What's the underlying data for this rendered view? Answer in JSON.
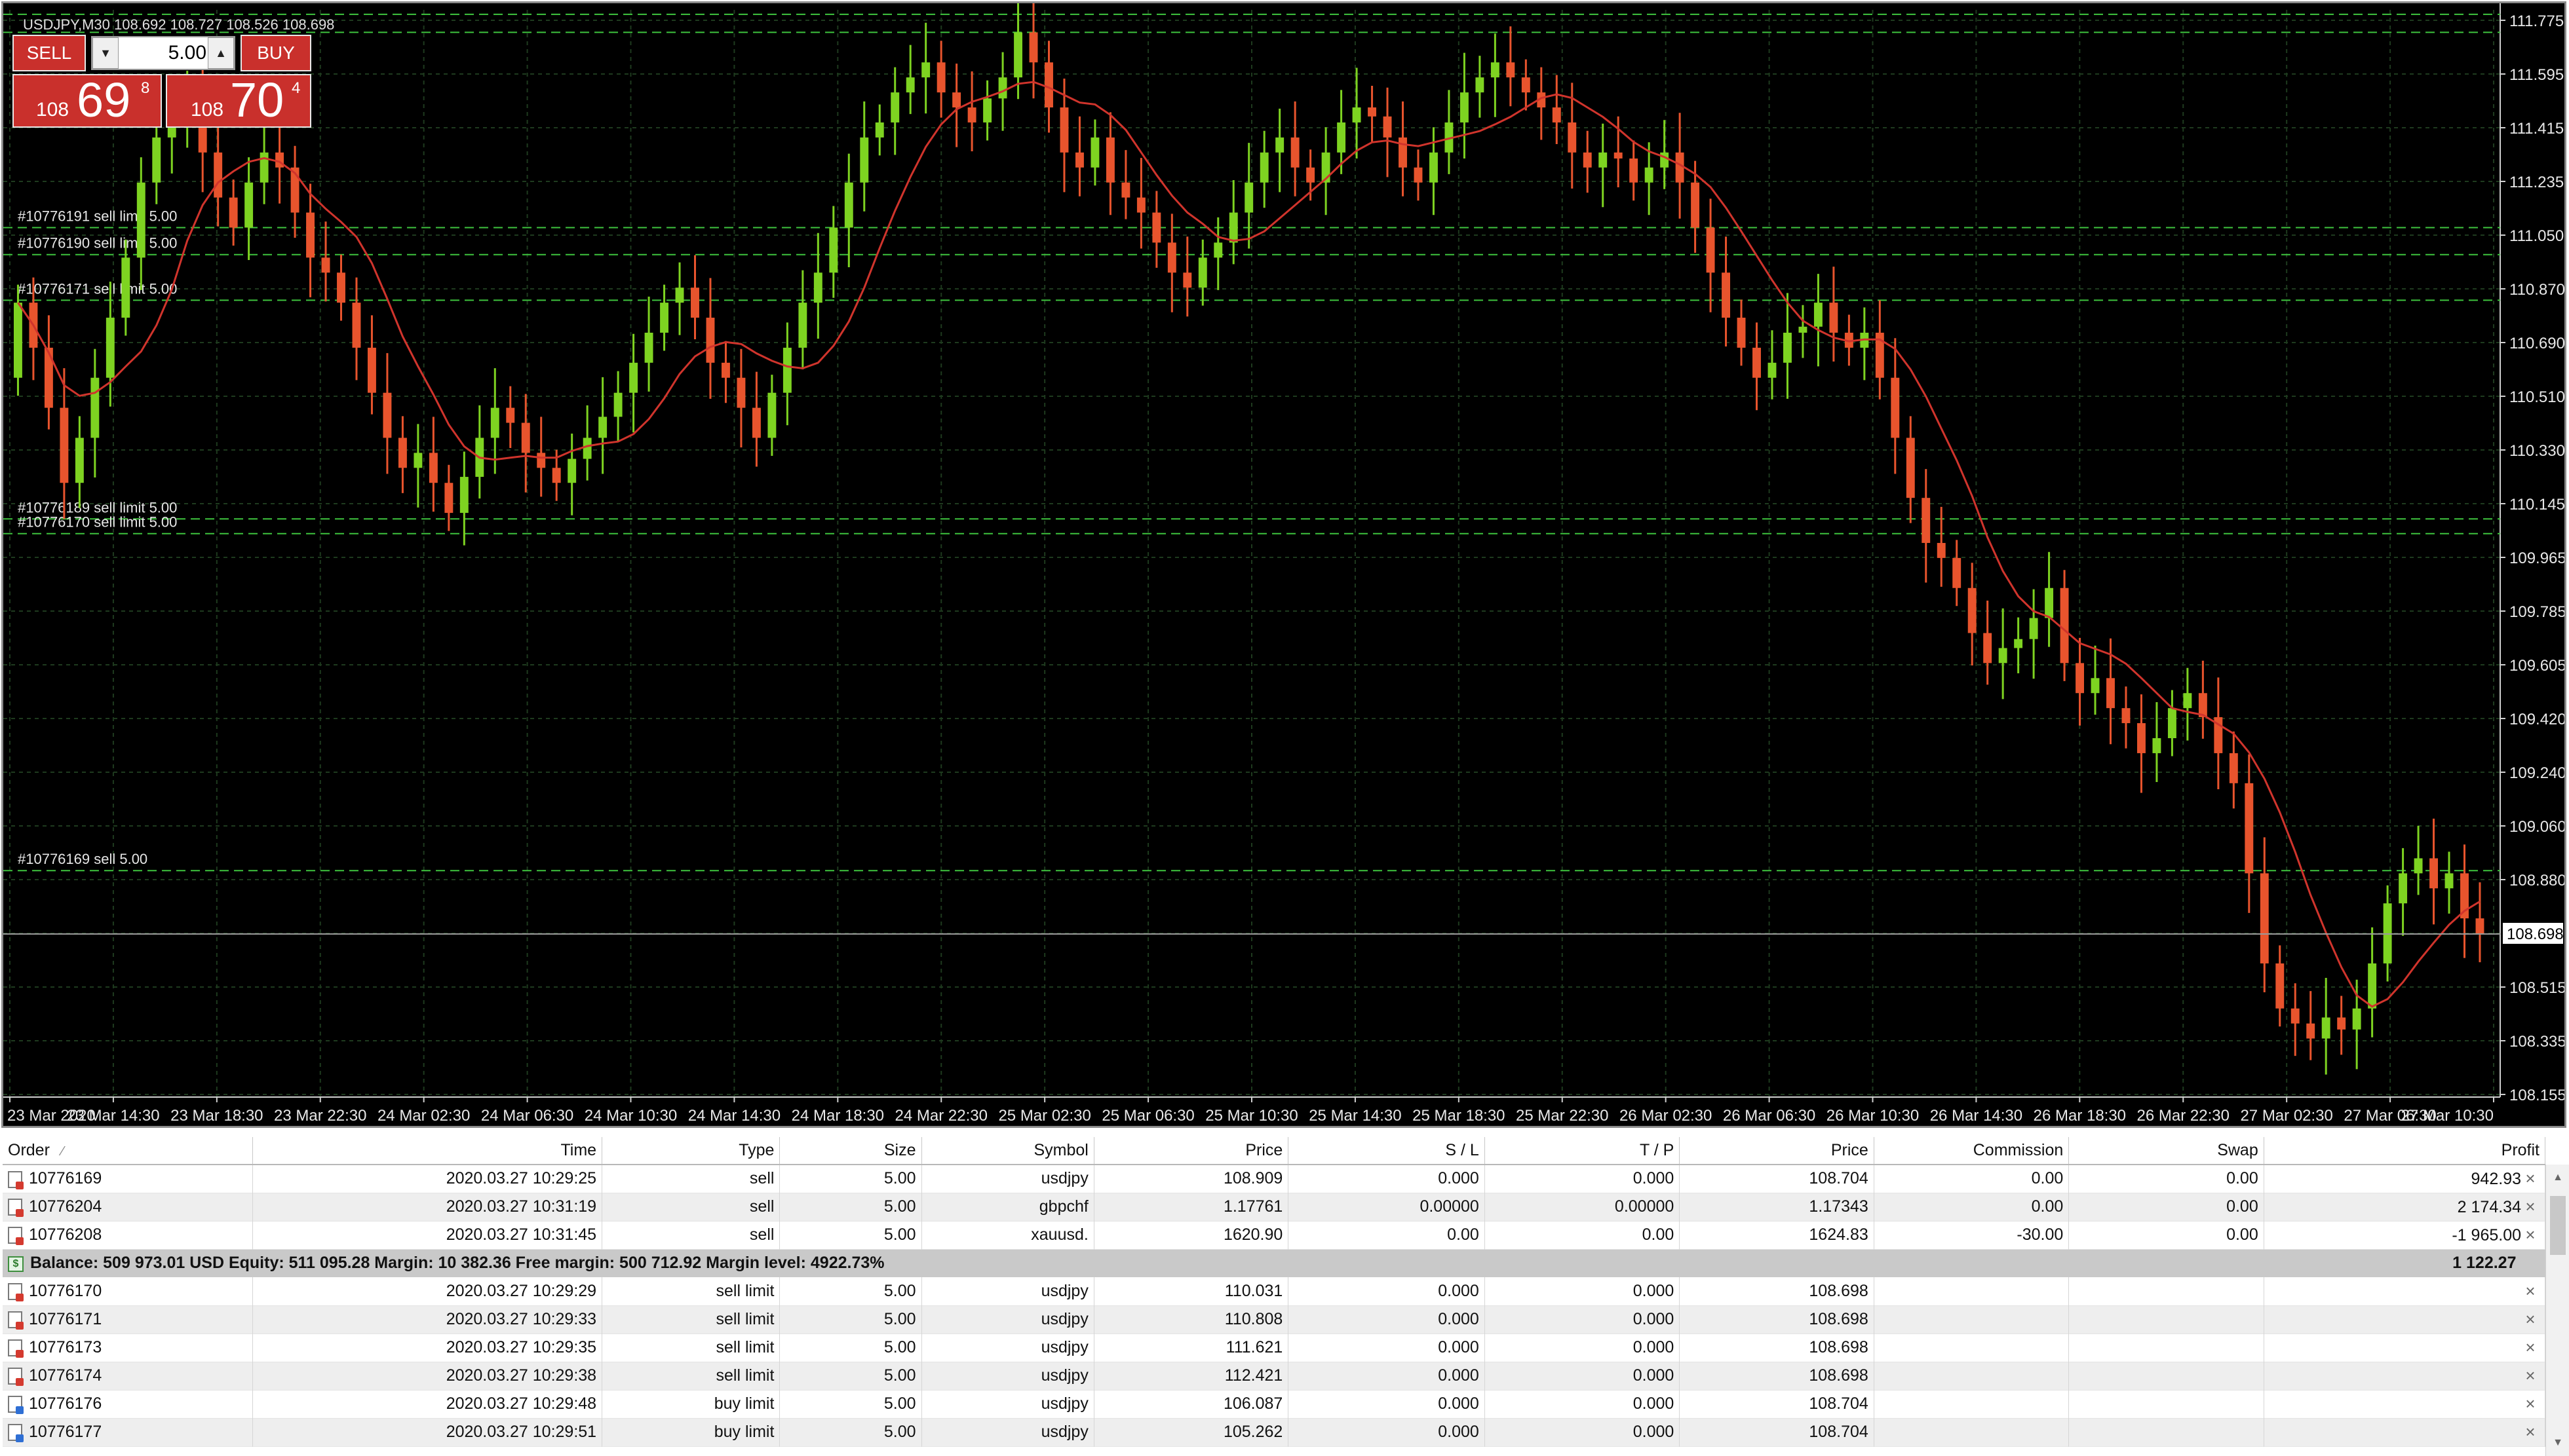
{
  "chart": {
    "title": "USDJPY,M30  108.692 108.727 108.526 108.698",
    "price_axis": [
      "111.775",
      "111.595",
      "111.415",
      "111.235",
      "111.050",
      "110.870",
      "110.690",
      "110.510",
      "110.330",
      "110.145",
      "109.965",
      "109.785",
      "109.605",
      "109.420",
      "109.240",
      "109.060",
      "108.880",
      "108.698",
      "108.515",
      "108.335",
      "108.155"
    ],
    "current_price": "108.698",
    "time_axis": [
      "23 Mar 2020",
      "23 Mar 14:30",
      "23 Mar 18:30",
      "23 Mar 22:30",
      "24 Mar 02:30",
      "24 Mar 06:30",
      "24 Mar 10:30",
      "24 Mar 14:30",
      "24 Mar 18:30",
      "24 Mar 22:30",
      "25 Mar 02:30",
      "25 Mar 06:30",
      "25 Mar 10:30",
      "25 Mar 14:30",
      "25 Mar 18:30",
      "25 Mar 22:30",
      "26 Mar 02:30",
      "26 Mar 06:30",
      "26 Mar 10:30",
      "26 Mar 14:30",
      "26 Mar 18:30",
      "26 Mar 22:30",
      "27 Mar 02:30",
      "27 Mar 06:30",
      "27 Mar 10:30"
    ],
    "order_lines": [
      {
        "label": "#10776191 sell limit 5.00",
        "price": 111.05
      },
      {
        "label": "#10776190 sell limit 5.00",
        "price": 110.96
      },
      {
        "label": "#10776171 sell limit 5.00",
        "price": 110.808
      },
      {
        "label": "#10776189 sell limit 5.00",
        "price": 110.08
      },
      {
        "label": "#10776170 sell limit 5.00",
        "price": 110.031
      },
      {
        "label": "#10776169 sell 5.00",
        "price": 108.909
      }
    ],
    "top_lines": [
      111.87,
      111.82,
      111.76,
      111.7
    ],
    "colors": {
      "bull": "#7ed321",
      "bear": "#e8542d",
      "ma": "#d0342c",
      "grid": "#1e3a1e",
      "order_line": "#3ec43e",
      "axis_text": "#e8e8e8"
    },
    "one_click": {
      "sell_label": "SELL",
      "buy_label": "BUY",
      "lot_value": "5.00",
      "bid_small": "108",
      "bid_big": "69",
      "bid_sup": "8",
      "ask_small": "108",
      "ask_big": "70",
      "ask_sup": "4",
      "down_icon": "arrow-down",
      "up_icon": "arrow-up"
    }
  },
  "chart_data": {
    "type": "candlestick",
    "title": "USDJPY,M30",
    "ylim": [
      108.155,
      111.775
    ],
    "series_note_ma": "moving average line",
    "candles_close": [
      110.8,
      110.65,
      110.45,
      110.2,
      110.35,
      110.55,
      110.75,
      110.95,
      111.2,
      111.35,
      111.4,
      111.5,
      111.3,
      111.15,
      111.05,
      111.2,
      111.3,
      111.25,
      111.1,
      110.95,
      110.9,
      110.8,
      110.65,
      110.5,
      110.35,
      110.25,
      110.3,
      110.2,
      110.1,
      110.22,
      110.35,
      110.45,
      110.4,
      110.3,
      110.25,
      110.2,
      110.28,
      110.35,
      110.42,
      110.5,
      110.6,
      110.7,
      110.8,
      110.85,
      110.75,
      110.6,
      110.55,
      110.45,
      110.35,
      110.5,
      110.65,
      110.8,
      110.9,
      111.05,
      111.2,
      111.35,
      111.4,
      111.5,
      111.55,
      111.6,
      111.5,
      111.45,
      111.4,
      111.48,
      111.55,
      111.7,
      111.6,
      111.45,
      111.3,
      111.25,
      111.35,
      111.2,
      111.15,
      111.1,
      111.0,
      110.9,
      110.85,
      110.95,
      111.0,
      111.1,
      111.2,
      111.3,
      111.35,
      111.25,
      111.2,
      111.3,
      111.4,
      111.45,
      111.42,
      111.35,
      111.25,
      111.2,
      111.3,
      111.4,
      111.5,
      111.55,
      111.6,
      111.55,
      111.5,
      111.45,
      111.4,
      111.3,
      111.25,
      111.3,
      111.28,
      111.2,
      111.25,
      111.3,
      111.2,
      111.05,
      110.9,
      110.75,
      110.65,
      110.55,
      110.6,
      110.7,
      110.72,
      110.8,
      110.7,
      110.65,
      110.7,
      110.55,
      110.35,
      110.15,
      110.0,
      109.95,
      109.85,
      109.7,
      109.6,
      109.65,
      109.68,
      109.75,
      109.85,
      109.6,
      109.5,
      109.55,
      109.45,
      109.4,
      109.3,
      109.35,
      109.45,
      109.5,
      109.42,
      109.3,
      109.2,
      108.9,
      108.6,
      108.45,
      108.4,
      108.35,
      108.42,
      108.38,
      108.45,
      108.6,
      108.8,
      108.9,
      108.95,
      108.85,
      108.9,
      108.75,
      108.7
    ]
  },
  "terminal": {
    "columns": [
      "Order",
      "Time",
      "Type",
      "Size",
      "Symbol",
      "Price",
      "S / L",
      "T / P",
      "Price",
      "Commission",
      "Swap",
      "Profit"
    ],
    "sort_icon": "sort-indicator",
    "positions": [
      {
        "order": "10776169",
        "time": "2020.03.27 10:29:25",
        "type": "sell",
        "size": "5.00",
        "symbol": "usdjpy",
        "price": "108.909",
        "sl": "0.000",
        "tp": "0.000",
        "cur": "108.704",
        "commission": "0.00",
        "swap": "0.00",
        "profit": "942.93"
      },
      {
        "order": "10776204",
        "time": "2020.03.27 10:31:19",
        "type": "sell",
        "size": "5.00",
        "symbol": "gbpchf",
        "price": "1.17761",
        "sl": "0.00000",
        "tp": "0.00000",
        "cur": "1.17343",
        "commission": "0.00",
        "swap": "0.00",
        "profit": "2 174.34"
      },
      {
        "order": "10776208",
        "time": "2020.03.27 10:31:45",
        "type": "sell",
        "size": "5.00",
        "symbol": "xauusd.",
        "price": "1620.90",
        "sl": "0.00",
        "tp": "0.00",
        "cur": "1624.83",
        "commission": "-30.00",
        "swap": "0.00",
        "profit": "-1 965.00"
      }
    ],
    "summary": {
      "text": "Balance: 509 973.01 USD  Equity: 511 095.28  Margin: 10 382.36  Free margin: 500 712.92  Margin level: 4922.73%",
      "profit": "1 122.27"
    },
    "pending": [
      {
        "order": "10776170",
        "time": "2020.03.27 10:29:29",
        "type": "sell limit",
        "size": "5.00",
        "symbol": "usdjpy",
        "price": "110.031",
        "sl": "0.000",
        "tp": "0.000",
        "cur": "108.698",
        "kind": "sell"
      },
      {
        "order": "10776171",
        "time": "2020.03.27 10:29:33",
        "type": "sell limit",
        "size": "5.00",
        "symbol": "usdjpy",
        "price": "110.808",
        "sl": "0.000",
        "tp": "0.000",
        "cur": "108.698",
        "kind": "sell"
      },
      {
        "order": "10776173",
        "time": "2020.03.27 10:29:35",
        "type": "sell limit",
        "size": "5.00",
        "symbol": "usdjpy",
        "price": "111.621",
        "sl": "0.000",
        "tp": "0.000",
        "cur": "108.698",
        "kind": "sell"
      },
      {
        "order": "10776174",
        "time": "2020.03.27 10:29:38",
        "type": "sell limit",
        "size": "5.00",
        "symbol": "usdjpy",
        "price": "112.421",
        "sl": "0.000",
        "tp": "0.000",
        "cur": "108.698",
        "kind": "sell"
      },
      {
        "order": "10776176",
        "time": "2020.03.27 10:29:48",
        "type": "buy limit",
        "size": "5.00",
        "symbol": "usdjpy",
        "price": "106.087",
        "sl": "0.000",
        "tp": "0.000",
        "cur": "108.704",
        "kind": "buy"
      },
      {
        "order": "10776177",
        "time": "2020.03.27 10:29:51",
        "type": "buy limit",
        "size": "5.00",
        "symbol": "usdjpy",
        "price": "105.262",
        "sl": "0.000",
        "tp": "0.000",
        "cur": "108.704",
        "kind": "buy"
      }
    ],
    "close_glyph": "×"
  }
}
